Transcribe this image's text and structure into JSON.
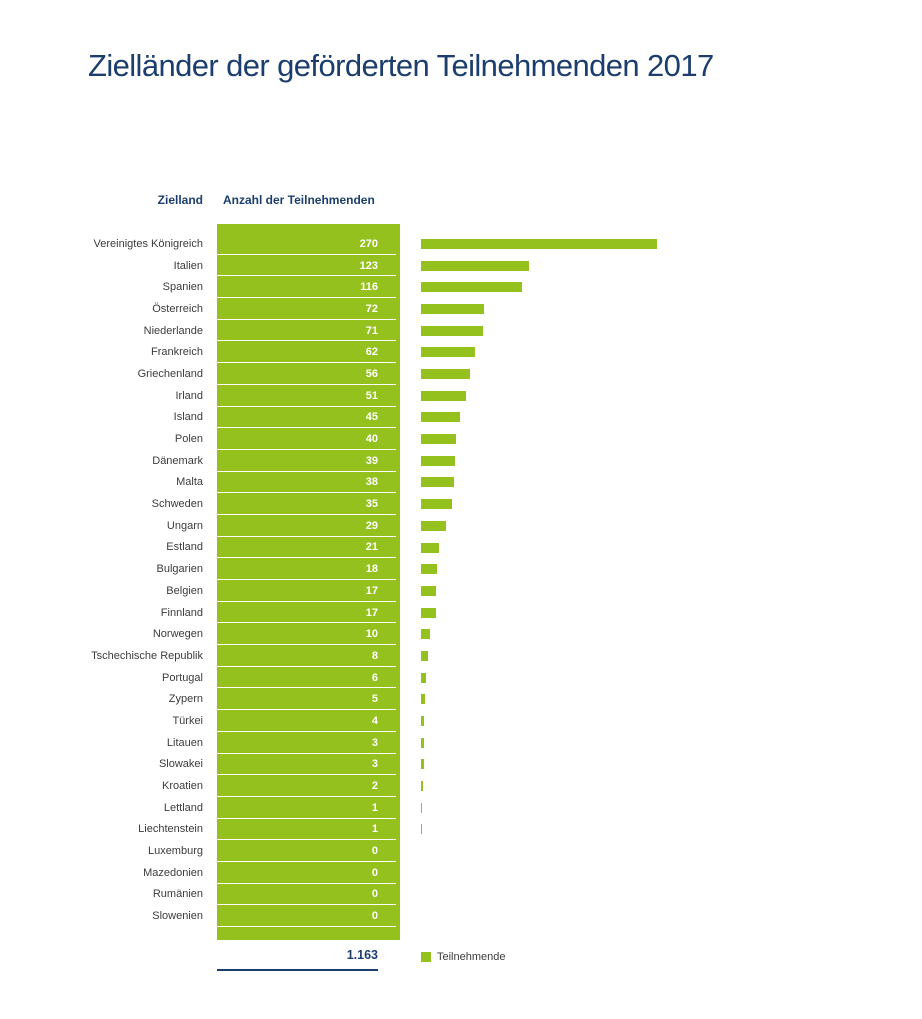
{
  "title": "Zielländer der geförderten Teilnehmenden 2017",
  "table": {
    "headers": {
      "country": "Zielland",
      "count": "Anzahl der Teilnehmenden"
    },
    "rows": [
      {
        "country": "Vereinigtes Königreich",
        "value": 270
      },
      {
        "country": "Italien",
        "value": 123
      },
      {
        "country": "Spanien",
        "value": 116
      },
      {
        "country": "Österreich",
        "value": 72
      },
      {
        "country": "Niederlande",
        "value": 71
      },
      {
        "country": "Frankreich",
        "value": 62
      },
      {
        "country": "Griechenland",
        "value": 56
      },
      {
        "country": "Irland",
        "value": 51
      },
      {
        "country": "Island",
        "value": 45
      },
      {
        "country": "Polen",
        "value": 40
      },
      {
        "country": "Dänemark",
        "value": 39
      },
      {
        "country": "Malta",
        "value": 38
      },
      {
        "country": "Schweden",
        "value": 35
      },
      {
        "country": "Ungarn",
        "value": 29
      },
      {
        "country": "Estland",
        "value": 21
      },
      {
        "country": "Bulgarien",
        "value": 18
      },
      {
        "country": "Belgien",
        "value": 17
      },
      {
        "country": "Finnland",
        "value": 17
      },
      {
        "country": "Norwegen",
        "value": 10
      },
      {
        "country": "Tschechische Republik",
        "value": 8
      },
      {
        "country": "Portugal",
        "value": 6
      },
      {
        "country": "Zypern",
        "value": 5
      },
      {
        "country": "Türkei",
        "value": 4
      },
      {
        "country": "Litauen",
        "value": 3
      },
      {
        "country": "Slowakei",
        "value": 3
      },
      {
        "country": "Kroatien",
        "value": 2
      },
      {
        "country": "Lettland",
        "value": 1
      },
      {
        "country": "Liechtenstein",
        "value": 1
      },
      {
        "country": "Luxemburg",
        "value": 0
      },
      {
        "country": "Mazedonien",
        "value": 0
      },
      {
        "country": "Rumänien",
        "value": 0
      },
      {
        "country": "Slowenien",
        "value": 0
      }
    ],
    "total": "1.163"
  },
  "legend": {
    "swatch_icon": "green-square-icon",
    "label": "Teilnehmende"
  },
  "colors": {
    "bar_green": "#94c11d",
    "navy_blue": "#1c3e6e",
    "label_gray": "#3c3c3b"
  },
  "chart_data": {
    "type": "bar",
    "orientation": "horizontal",
    "title": "Zielländer der geförderten Teilnehmenden 2017",
    "categories": [
      "Vereinigtes Königreich",
      "Italien",
      "Spanien",
      "Österreich",
      "Niederlande",
      "Frankreich",
      "Griechenland",
      "Irland",
      "Island",
      "Polen",
      "Dänemark",
      "Malta",
      "Schweden",
      "Ungarn",
      "Estland",
      "Bulgarien",
      "Belgien",
      "Finnland",
      "Norwegen",
      "Tschechische Republik",
      "Portugal",
      "Zypern",
      "Türkei",
      "Litauen",
      "Slowakei",
      "Kroatien",
      "Lettland",
      "Liechtenstein",
      "Luxemburg",
      "Mazedonien",
      "Rumänien",
      "Slowenien"
    ],
    "values": [
      270,
      123,
      116,
      72,
      71,
      62,
      56,
      51,
      45,
      40,
      39,
      38,
      35,
      29,
      21,
      18,
      17,
      17,
      10,
      8,
      6,
      5,
      4,
      3,
      3,
      2,
      1,
      1,
      0,
      0,
      0,
      0
    ],
    "series_label": "Teilnehmende",
    "xlabel": "Anzahl der Teilnehmenden",
    "ylabel": "Zielland",
    "total": 1163,
    "total_label": "1.163",
    "xlim": [
      0,
      280
    ],
    "grid": false,
    "legend_position": "bottom",
    "bar_color": "#94c11d"
  }
}
